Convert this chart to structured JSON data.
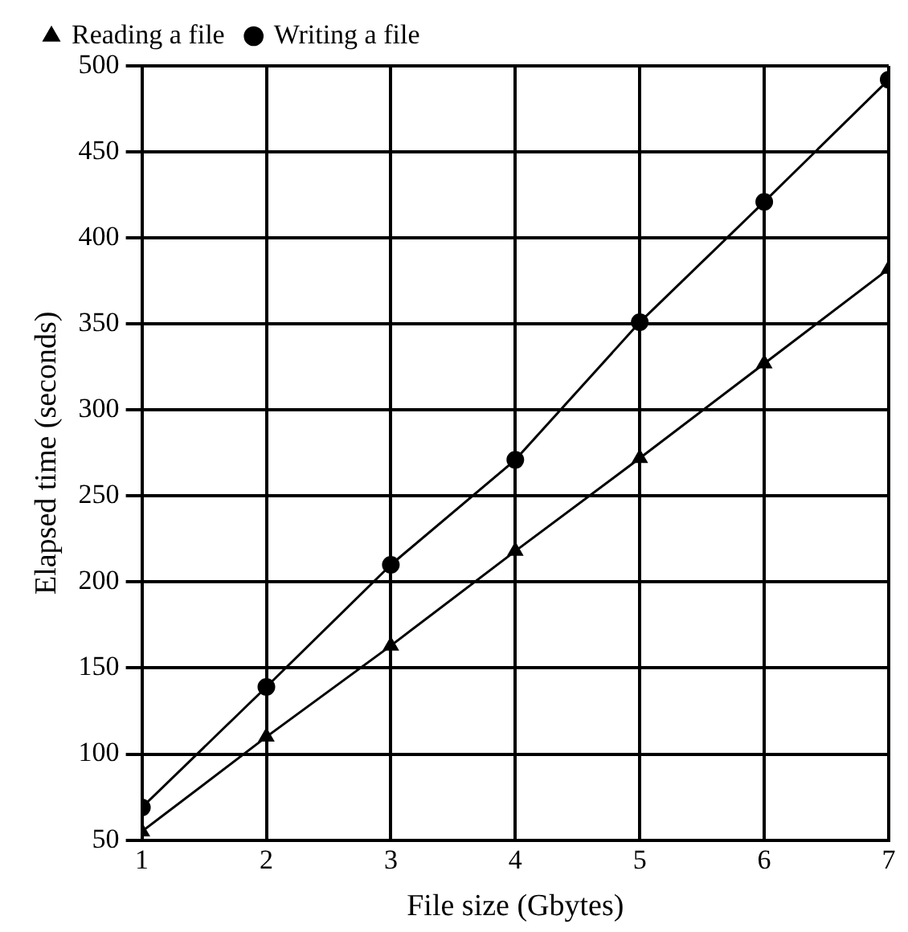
{
  "chart_data": {
    "type": "line",
    "xlabel": "File size (Gbytes)",
    "ylabel": "Elapsed time (seconds)",
    "x": [
      1,
      2,
      3,
      4,
      5,
      6,
      7
    ],
    "series": [
      {
        "name": "Reading a file",
        "color": "#000000",
        "marker": "triangle",
        "values": [
          55,
          110,
          163,
          218,
          272,
          327,
          382
        ]
      },
      {
        "name": "Writing a file",
        "color": "#000000",
        "marker": "circle",
        "values": [
          69,
          139,
          210,
          271,
          351,
          421,
          492
        ]
      }
    ],
    "xlim": [
      1,
      7
    ],
    "xticks": [
      1,
      2,
      3,
      4,
      5,
      6,
      7
    ],
    "ylim": [
      50,
      500
    ],
    "yticks": [
      50,
      100,
      150,
      200,
      250,
      300,
      350,
      400,
      450,
      500
    ],
    "grid": true,
    "legend": "top left",
    "line_style": "solid"
  }
}
